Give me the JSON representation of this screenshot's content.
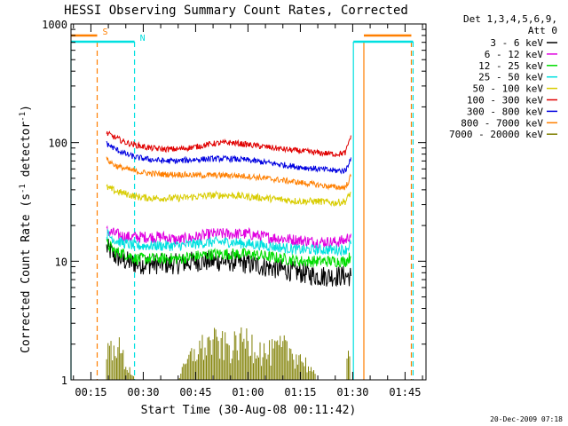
{
  "chart_data": {
    "type": "line",
    "title": "HESSI Observing Summary Count Rates, Corrected",
    "xlabel": "Start Time (30-Aug-08 00:11:42)",
    "ylabel": "Corrected Count Rate (s⁻¹ detector⁻¹)",
    "ylabel_main": "Corrected Count Rate (s",
    "ylabel_sup1": "-1",
    "ylabel_mid": " detector",
    "ylabel_sup2": "-1",
    "ylabel_end": ")",
    "y_scale": "log",
    "ylim": [
      1,
      1000
    ],
    "y_ticks": [
      {
        "value": 1,
        "label": "1"
      },
      {
        "value": 10,
        "label": "10"
      },
      {
        "value": 100,
        "label": "100"
      },
      {
        "value": 1000,
        "label": "1000"
      }
    ],
    "xlim_minutes": [
      9.3,
      111.0
    ],
    "x_ticks": [
      {
        "minute": 15,
        "label": "00:15"
      },
      {
        "minute": 30,
        "label": "00:30"
      },
      {
        "minute": 45,
        "label": "00:45"
      },
      {
        "minute": 60,
        "label": "01:00"
      },
      {
        "minute": 75,
        "label": "01:15"
      },
      {
        "minute": 90,
        "label": "01:30"
      },
      {
        "minute": 105,
        "label": "01:45"
      }
    ],
    "legend_title_1": "Det 1,3,4,5,6,9,",
    "legend_title_2": "Att 0",
    "legend_placement": "right",
    "series": [
      {
        "name": "3 - 6 keV",
        "color": "#000000",
        "x": [
          19.5,
          22,
          25,
          28,
          32,
          36,
          40,
          45,
          50,
          55,
          60,
          65,
          70,
          75,
          80,
          85,
          88,
          89.5
        ],
        "values": [
          13,
          11,
          10,
          9.5,
          9.5,
          9.5,
          9.5,
          10,
          10,
          10,
          9.5,
          9,
          8.5,
          8,
          7.5,
          7.5,
          7.5,
          7.5
        ]
      },
      {
        "name": "6 - 12 keV",
        "color": "#e000e0",
        "x": [
          19.5,
          22,
          25,
          28,
          32,
          36,
          40,
          45,
          50,
          55,
          60,
          65,
          70,
          75,
          80,
          85,
          88,
          89.5
        ],
        "values": [
          18,
          17,
          16,
          16,
          16,
          16,
          15,
          16,
          17,
          17,
          17,
          16,
          15.5,
          15,
          14.5,
          14.5,
          15,
          17
        ]
      },
      {
        "name": "12 - 25 keV",
        "color": "#00dd00",
        "x": [
          19.5,
          22,
          25,
          28,
          32,
          36,
          40,
          45,
          50,
          55,
          60,
          65,
          70,
          75,
          80,
          85,
          88,
          89.5
        ],
        "values": [
          14,
          12,
          11.5,
          10.5,
          10.5,
          10.5,
          10.5,
          11,
          11.5,
          11.5,
          11.5,
          11,
          10.5,
          10,
          10,
          10,
          10,
          11
        ]
      },
      {
        "name": "25 - 50 keV",
        "color": "#00e0e0",
        "x": [
          19.5,
          22,
          25,
          28,
          32,
          36,
          40,
          45,
          50,
          55,
          60,
          65,
          70,
          75,
          80,
          85,
          88,
          89.5
        ],
        "values": [
          17,
          15,
          14,
          13.5,
          13.5,
          13.5,
          13.5,
          14,
          14.5,
          14.5,
          14,
          13.5,
          13,
          12.5,
          12.5,
          12.5,
          12.5,
          14
        ]
      },
      {
        "name": "50 - 100 keV",
        "color": "#d8cc00",
        "x": [
          19.5,
          22,
          25,
          28,
          32,
          36,
          40,
          45,
          50,
          55,
          60,
          65,
          70,
          75,
          80,
          85,
          88,
          89.5
        ],
        "values": [
          42,
          39,
          37,
          35,
          34,
          34,
          34,
          35,
          36,
          36,
          35,
          34,
          33,
          32,
          32,
          31,
          32,
          38
        ]
      },
      {
        "name": "100 - 300 keV",
        "color": "#e00000",
        "x": [
          19.5,
          22,
          25,
          28,
          32,
          36,
          40,
          45,
          50,
          55,
          60,
          65,
          70,
          75,
          80,
          85,
          88,
          89.5
        ],
        "values": [
          120,
          110,
          100,
          95,
          90,
          88,
          88,
          92,
          98,
          100,
          96,
          92,
          88,
          85,
          82,
          80,
          82,
          115
        ]
      },
      {
        "name": "300 - 800 keV",
        "color": "#0000e0",
        "x": [
          19.5,
          22,
          25,
          28,
          32,
          36,
          40,
          45,
          50,
          55,
          60,
          65,
          70,
          75,
          80,
          85,
          88,
          89.5
        ],
        "values": [
          98,
          88,
          80,
          75,
          72,
          70,
          70,
          72,
          73,
          73,
          71,
          68,
          65,
          62,
          60,
          58,
          58,
          75
        ]
      },
      {
        "name": "800 - 7000 keV",
        "color": "#ff7f00",
        "x": [
          19.5,
          22,
          25,
          28,
          32,
          36,
          40,
          45,
          50,
          55,
          60,
          65,
          70,
          75,
          80,
          85,
          88,
          89.5
        ],
        "values": [
          72,
          64,
          60,
          57,
          55,
          54,
          54,
          53,
          53,
          53,
          52,
          50,
          48,
          46,
          44,
          42,
          42,
          52
        ]
      },
      {
        "name": "7000 - 20000 keV",
        "color": "#7f7f00",
        "x": [
          19.5,
          22,
          25,
          28,
          32,
          36,
          40,
          45,
          50,
          55,
          60,
          65,
          70,
          75,
          80,
          85,
          88,
          89.5
        ],
        "values": [
          1.6,
          2.0,
          1.3,
          1.0,
          1.0,
          1.0,
          1.0,
          1.7,
          2.0,
          1.8,
          2.1,
          1.6,
          1.8,
          1.5,
          1.0,
          1.0,
          1.0,
          2.2
        ]
      }
    ],
    "annotations": [
      {
        "type": "marker-line",
        "color": "#00e0e0",
        "style": "solid",
        "x_minute": 9.3
      },
      {
        "type": "marker-line",
        "color": "#ff7f00",
        "style": "dashed",
        "x_minute": 16.8
      },
      {
        "type": "marker-line",
        "color": "#00e0e0",
        "style": "dashed",
        "x_minute": 27.5
      },
      {
        "type": "marker-line",
        "color": "#00e0e0",
        "style": "solid",
        "x_minute": 90.2
      },
      {
        "type": "marker-line",
        "color": "#ff7f00",
        "style": "solid",
        "x_minute": 93.2
      },
      {
        "type": "marker-line",
        "color": "#ff7f00",
        "style": "dashed",
        "x_minute": 106.8
      },
      {
        "type": "marker-line",
        "color": "#00e0e0",
        "style": "dashed",
        "x_minute": 107.3
      }
    ],
    "flag_bars": [
      {
        "label": "S",
        "color": "#ff7f00",
        "segments": [
          [
            9.3,
            16.8
          ],
          [
            93.2,
            106.8
          ]
        ]
      },
      {
        "label": "N",
        "color": "#00e0e0",
        "segments": [
          [
            9.3,
            27.5
          ],
          [
            90.2,
            107.3
          ]
        ]
      }
    ],
    "footer_timestamp": "20-Dec-2009 07:18"
  }
}
